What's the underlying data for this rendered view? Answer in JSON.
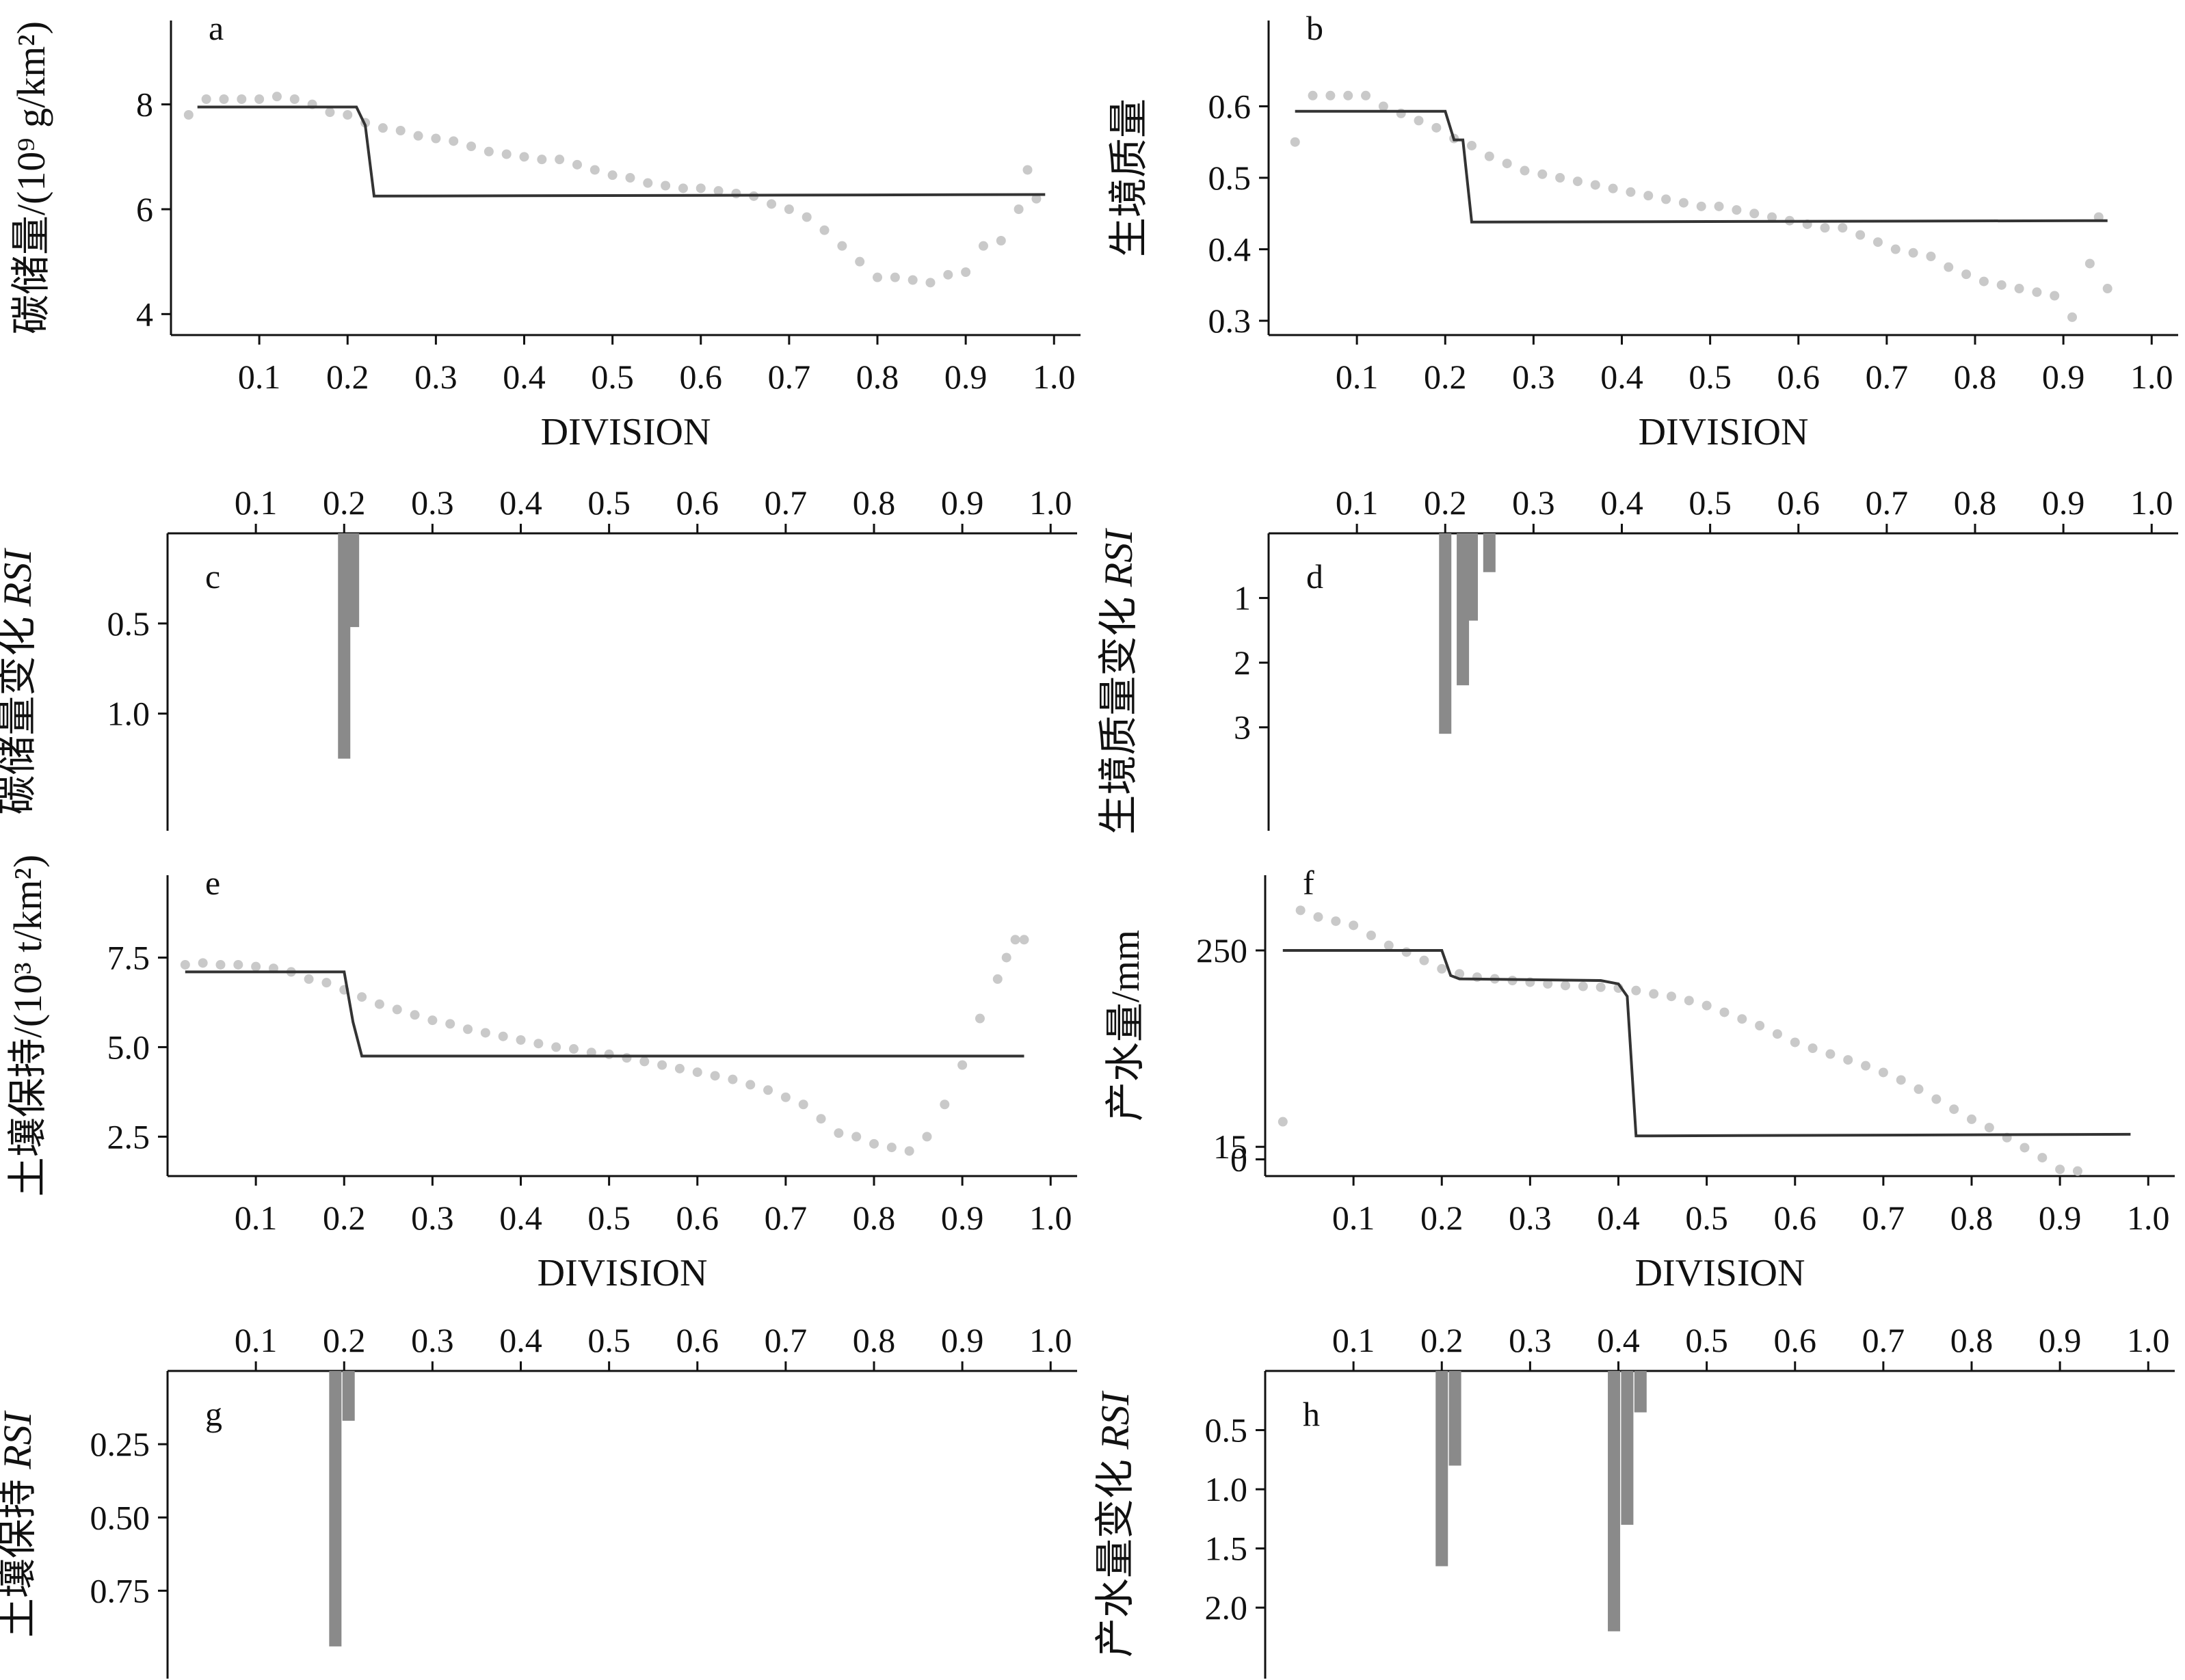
{
  "colors": {
    "axis": "#111111",
    "dot": "#c9c9c9",
    "line": "#333333",
    "bar": "#8a8a8a"
  },
  "chart_data": [
    {
      "id": "a",
      "type": "scatter",
      "panel_label": "a",
      "ylabel": "碳储量/(10⁹ g/km²)",
      "xlabel": "DIVISION",
      "xlim": [
        0,
        1.03
      ],
      "ylim": [
        3.6,
        9.6
      ],
      "xticks": [
        "0.1",
        "0.2",
        "0.3",
        "0.4",
        "0.5",
        "0.6",
        "0.7",
        "0.8",
        "0.9",
        "1.0"
      ],
      "yticks": [
        "4",
        "6",
        "8"
      ],
      "series": [
        {
          "kind": "points",
          "x": [
            0.02,
            0.04,
            0.06,
            0.08,
            0.1,
            0.12,
            0.14,
            0.16,
            0.18,
            0.2,
            0.22,
            0.24,
            0.26,
            0.28,
            0.3,
            0.32,
            0.34,
            0.36,
            0.38,
            0.4,
            0.42,
            0.44,
            0.46,
            0.48,
            0.5,
            0.52,
            0.54,
            0.56,
            0.58,
            0.6,
            0.62,
            0.64,
            0.66,
            0.68,
            0.7,
            0.72,
            0.74,
            0.76,
            0.78,
            0.8,
            0.82,
            0.84,
            0.86,
            0.88,
            0.9,
            0.92,
            0.94,
            0.96,
            0.97,
            0.98
          ],
          "y": [
            7.8,
            8.1,
            8.1,
            8.1,
            8.1,
            8.15,
            8.1,
            8.0,
            7.85,
            7.8,
            7.65,
            7.55,
            7.5,
            7.4,
            7.35,
            7.3,
            7.2,
            7.1,
            7.05,
            7.0,
            6.95,
            6.95,
            6.85,
            6.75,
            6.65,
            6.6,
            6.5,
            6.45,
            6.4,
            6.4,
            6.35,
            6.3,
            6.25,
            6.1,
            6.0,
            5.85,
            5.6,
            5.3,
            5.0,
            4.7,
            4.7,
            4.65,
            4.6,
            4.75,
            4.8,
            5.3,
            5.4,
            6.0,
            6.75,
            6.2
          ]
        },
        {
          "kind": "step",
          "x": [
            0.03,
            0.21,
            0.22,
            0.23,
            0.99
          ],
          "y": [
            7.95,
            7.95,
            7.6,
            6.25,
            6.28
          ]
        }
      ]
    },
    {
      "id": "b",
      "type": "scatter",
      "panel_label": "b",
      "ylabel": "生境质量",
      "xlabel": "DIVISION",
      "xlim": [
        0,
        1.03
      ],
      "ylim": [
        0.28,
        0.72
      ],
      "xticks": [
        "0.1",
        "0.2",
        "0.3",
        "0.4",
        "0.5",
        "0.6",
        "0.7",
        "0.8",
        "0.9",
        "1.0"
      ],
      "yticks": [
        "0.3",
        "0.4",
        "0.5",
        "0.6"
      ],
      "series": [
        {
          "kind": "points",
          "x": [
            0.03,
            0.05,
            0.07,
            0.09,
            0.11,
            0.13,
            0.15,
            0.17,
            0.19,
            0.21,
            0.23,
            0.25,
            0.27,
            0.29,
            0.31,
            0.33,
            0.35,
            0.37,
            0.39,
            0.41,
            0.43,
            0.45,
            0.47,
            0.49,
            0.51,
            0.53,
            0.55,
            0.57,
            0.59,
            0.61,
            0.63,
            0.65,
            0.67,
            0.69,
            0.71,
            0.73,
            0.75,
            0.77,
            0.79,
            0.81,
            0.83,
            0.85,
            0.87,
            0.89,
            0.91,
            0.93,
            0.94,
            0.95
          ],
          "y": [
            0.55,
            0.615,
            0.615,
            0.615,
            0.615,
            0.6,
            0.59,
            0.58,
            0.57,
            0.555,
            0.545,
            0.53,
            0.52,
            0.51,
            0.505,
            0.5,
            0.495,
            0.49,
            0.485,
            0.48,
            0.475,
            0.47,
            0.465,
            0.46,
            0.46,
            0.455,
            0.45,
            0.445,
            0.44,
            0.435,
            0.43,
            0.43,
            0.42,
            0.41,
            0.4,
            0.395,
            0.39,
            0.375,
            0.365,
            0.355,
            0.35,
            0.345,
            0.34,
            0.335,
            0.305,
            0.38,
            0.445,
            0.345
          ]
        },
        {
          "kind": "step",
          "x": [
            0.03,
            0.2,
            0.21,
            0.22,
            0.23,
            0.95
          ],
          "y": [
            0.593,
            0.593,
            0.553,
            0.553,
            0.438,
            0.44
          ]
        }
      ]
    },
    {
      "id": "c",
      "type": "bar",
      "panel_label": "c",
      "ylabel": "碳储量变化 RSI",
      "xlim": [
        0,
        1.03
      ],
      "ylim": [
        0,
        1.65
      ],
      "y_inverted": true,
      "xticks": [
        "0.1",
        "0.2",
        "0.3",
        "0.4",
        "0.5",
        "0.6",
        "0.7",
        "0.8",
        "0.9",
        "1.0"
      ],
      "yticks": [
        "0.5",
        "1.0"
      ],
      "x": [
        0.2,
        0.21
      ],
      "values": [
        1.25,
        0.52
      ]
    },
    {
      "id": "d",
      "type": "bar",
      "panel_label": "d",
      "ylabel": "生境质量变化 RSI",
      "xlim": [
        0,
        1.03
      ],
      "ylim": [
        0,
        4.6
      ],
      "y_inverted": true,
      "xticks": [
        "0.1",
        "0.2",
        "0.3",
        "0.4",
        "0.5",
        "0.6",
        "0.7",
        "0.8",
        "0.9",
        "1.0"
      ],
      "yticks": [
        "1",
        "2",
        "3"
      ],
      "x": [
        0.2,
        0.22,
        0.23,
        0.25
      ],
      "values": [
        3.1,
        2.35,
        1.35,
        0.6
      ]
    },
    {
      "id": "e",
      "type": "scatter",
      "panel_label": "e",
      "ylabel": "土壤保持/(10³ t/km²)",
      "xlabel": "DIVISION",
      "xlim": [
        0,
        1.03
      ],
      "ylim": [
        1.4,
        9.8
      ],
      "xticks": [
        "0.1",
        "0.2",
        "0.3",
        "0.4",
        "0.5",
        "0.6",
        "0.7",
        "0.8",
        "0.9",
        "1.0"
      ],
      "yticks": [
        "2.5",
        "5.0",
        "7.5"
      ],
      "series": [
        {
          "kind": "points",
          "x": [
            0.02,
            0.04,
            0.06,
            0.08,
            0.1,
            0.12,
            0.14,
            0.16,
            0.18,
            0.2,
            0.22,
            0.24,
            0.26,
            0.28,
            0.3,
            0.32,
            0.34,
            0.36,
            0.38,
            0.4,
            0.42,
            0.44,
            0.46,
            0.48,
            0.5,
            0.52,
            0.54,
            0.56,
            0.58,
            0.6,
            0.62,
            0.64,
            0.66,
            0.68,
            0.7,
            0.72,
            0.74,
            0.76,
            0.78,
            0.8,
            0.82,
            0.84,
            0.86,
            0.88,
            0.9,
            0.92,
            0.94,
            0.95,
            0.96,
            0.97
          ],
          "y": [
            7.3,
            7.35,
            7.3,
            7.3,
            7.25,
            7.2,
            7.1,
            6.9,
            6.8,
            6.6,
            6.4,
            6.2,
            6.05,
            5.9,
            5.75,
            5.65,
            5.5,
            5.4,
            5.3,
            5.2,
            5.1,
            5.0,
            4.95,
            4.85,
            4.8,
            4.7,
            4.6,
            4.5,
            4.4,
            4.3,
            4.2,
            4.1,
            3.95,
            3.8,
            3.6,
            3.4,
            3.0,
            2.6,
            2.5,
            2.3,
            2.2,
            2.1,
            2.5,
            3.4,
            4.5,
            5.8,
            6.9,
            7.5,
            8.0,
            8.0
          ]
        },
        {
          "kind": "step",
          "x": [
            0.02,
            0.2,
            0.21,
            0.22,
            0.97
          ],
          "y": [
            7.1,
            7.1,
            5.7,
            4.75,
            4.75
          ]
        }
      ]
    },
    {
      "id": "f",
      "type": "scatter",
      "panel_label": "f",
      "ylabel": "产水量/mm",
      "xlabel": "DIVISION",
      "xlim": [
        0,
        1.03
      ],
      "ylim": [
        -20,
        340
      ],
      "xticks": [
        "0.1",
        "0.2",
        "0.3",
        "0.4",
        "0.5",
        "0.6",
        "0.7",
        "0.8",
        "0.9",
        "1.0"
      ],
      "yticks": [
        "250",
        "15",
        "0"
      ],
      "series": [
        {
          "kind": "points",
          "x": [
            0.02,
            0.04,
            0.06,
            0.08,
            0.1,
            0.12,
            0.14,
            0.16,
            0.18,
            0.2,
            0.22,
            0.24,
            0.26,
            0.28,
            0.3,
            0.32,
            0.34,
            0.36,
            0.38,
            0.4,
            0.42,
            0.44,
            0.46,
            0.48,
            0.5,
            0.52,
            0.54,
            0.56,
            0.58,
            0.6,
            0.62,
            0.64,
            0.66,
            0.68,
            0.7,
            0.72,
            0.74,
            0.76,
            0.78,
            0.8,
            0.82,
            0.84,
            0.86,
            0.88,
            0.9,
            0.92
          ],
          "y": [
            45,
            298,
            290,
            285,
            280,
            268,
            256,
            248,
            238,
            228,
            222,
            218,
            216,
            214,
            212,
            210,
            208,
            207,
            206,
            205,
            202,
            198,
            195,
            190,
            184,
            176,
            168,
            160,
            150,
            140,
            133,
            126,
            119,
            112,
            104,
            95,
            84,
            72,
            60,
            48,
            38,
            26,
            14,
            2,
            -12,
            -14
          ]
        },
        {
          "kind": "step",
          "x": [
            0.02,
            0.2,
            0.21,
            0.22,
            0.38,
            0.4,
            0.41,
            0.42,
            0.98
          ],
          "y": [
            250,
            250,
            220,
            216,
            214,
            210,
            195,
            28,
            30
          ]
        }
      ]
    },
    {
      "id": "g",
      "type": "bar",
      "panel_label": "g",
      "ylabel": "土壤保持 RSI",
      "xlim": [
        0,
        1.03
      ],
      "ylim": [
        0,
        1.05
      ],
      "y_inverted": true,
      "xticks": [
        "0.1",
        "0.2",
        "0.3",
        "0.4",
        "0.5",
        "0.6",
        "0.7",
        "0.8",
        "0.9",
        "1.0"
      ],
      "yticks": [
        "0.25",
        "0.50",
        "0.75"
      ],
      "x": [
        0.19,
        0.205
      ],
      "values": [
        0.94,
        0.17
      ]
    },
    {
      "id": "h",
      "type": "bar",
      "panel_label": "h",
      "ylabel": "产水量变化 RSI",
      "xlim": [
        0,
        1.03
      ],
      "ylim": [
        0,
        2.6
      ],
      "y_inverted": true,
      "xticks": [
        "0.1",
        "0.2",
        "0.3",
        "0.4",
        "0.5",
        "0.6",
        "0.7",
        "0.8",
        "0.9",
        "1.0"
      ],
      "yticks": [
        "0.5",
        "1.0",
        "1.5",
        "2.0"
      ],
      "x": [
        0.2,
        0.215,
        0.395,
        0.41,
        0.425
      ],
      "values": [
        1.65,
        0.8,
        2.2,
        1.3,
        0.35
      ]
    }
  ]
}
